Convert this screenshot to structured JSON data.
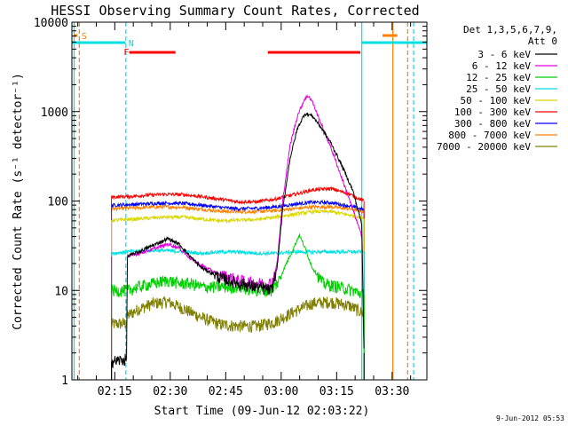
{
  "chart_data": {
    "type": "line",
    "title": "HESSI Observing Summary Count Rates, Corrected",
    "xlabel": "Start Time (09-Jun-12 02:03:22)",
    "ylabel": "Corrected Count Rate (s⁻¹ detector⁻¹)",
    "yscale": "log",
    "ylim": [
      1,
      10000
    ],
    "xlim_minutes_since_start": [
      0,
      96
    ],
    "x_ticks": [
      "02:15",
      "02:30",
      "02:45",
      "03:00",
      "03:15",
      "03:30"
    ],
    "x_tick_minutes": [
      11.6,
      26.6,
      41.6,
      56.6,
      71.6,
      86.6
    ],
    "y_ticks": [
      "1",
      "10",
      "100",
      "1000",
      "10000"
    ],
    "legend_title": [
      "Det 1,3,5,6,7,9,",
      "Att 0"
    ],
    "footer_date": "9-Jun-2012 05:53",
    "flags": {
      "S": {
        "label": "S",
        "color": "#ff8000",
        "x_start": 0.5,
        "x_end": 1.5
      },
      "N": {
        "label": "N",
        "color": "#00e0e0"
      },
      "F": {
        "label": "F",
        "color": "#ff0000"
      },
      "night_segments": [
        [
          0,
          14.5
        ],
        [
          78.5,
          96
        ]
      ],
      "flare_segments": [
        [
          15.5,
          28
        ],
        [
          53,
          78
        ]
      ],
      "orange_top_segment": [
        84,
        88
      ]
    },
    "vertical_lines": [
      {
        "x": 0.6,
        "color": "#00e0e0",
        "style": "solid"
      },
      {
        "x": 2.0,
        "color": "#ff8000",
        "style": "dashed"
      },
      {
        "x": 14.6,
        "color": "#00e0e0",
        "style": "dashed"
      },
      {
        "x": 78.4,
        "color": "#00e0e0",
        "style": "solid"
      },
      {
        "x": 86.8,
        "color": "#ff8000",
        "style": "solid"
      },
      {
        "x": 90.8,
        "color": "#ff8000",
        "style": "dashed"
      },
      {
        "x": 92.4,
        "color": "#00e0e0",
        "style": "dashed"
      }
    ],
    "data_start": 10.7,
    "data_end": 79.0,
    "series": [
      {
        "name": "3 - 6 keV",
        "color": "#000000",
        "points": [
          [
            10.7,
            1.6
          ],
          [
            14.8,
            1.7
          ],
          [
            15.0,
            24
          ],
          [
            18,
            27
          ],
          [
            22,
            32
          ],
          [
            26,
            38
          ],
          [
            29,
            33
          ],
          [
            32,
            24
          ],
          [
            35,
            18
          ],
          [
            40,
            14
          ],
          [
            45,
            12
          ],
          [
            50,
            11
          ],
          [
            54,
            10
          ],
          [
            55.5,
            18
          ],
          [
            57,
            80
          ],
          [
            59,
            300
          ],
          [
            61,
            650
          ],
          [
            63,
            950
          ],
          [
            65,
            900
          ],
          [
            67,
            700
          ],
          [
            70,
            450
          ],
          [
            73,
            250
          ],
          [
            76,
            130
          ],
          [
            78.4,
            55
          ],
          [
            79.0,
            2
          ]
        ]
      },
      {
        "name": "6 - 12 keV",
        "color": "#e000e0",
        "points": [
          [
            15.0,
            24
          ],
          [
            18,
            26
          ],
          [
            22,
            29
          ],
          [
            26,
            33
          ],
          [
            29,
            30
          ],
          [
            32,
            23
          ],
          [
            35,
            19
          ],
          [
            40,
            15
          ],
          [
            45,
            13
          ],
          [
            50,
            12
          ],
          [
            54,
            12
          ],
          [
            55.5,
            20
          ],
          [
            57,
            100
          ],
          [
            59,
            420
          ],
          [
            61,
            900
          ],
          [
            63,
            1400
          ],
          [
            64,
            1500
          ],
          [
            65,
            1300
          ],
          [
            67,
            800
          ],
          [
            70,
            400
          ],
          [
            73,
            180
          ],
          [
            76,
            80
          ],
          [
            78.4,
            40
          ]
        ]
      },
      {
        "name": "12 - 25 keV",
        "color": "#00d000",
        "points": [
          [
            10.7,
            10
          ],
          [
            15,
            10
          ],
          [
            18,
            11
          ],
          [
            22,
            12
          ],
          [
            26,
            13
          ],
          [
            29,
            12
          ],
          [
            32,
            12
          ],
          [
            35,
            11
          ],
          [
            40,
            11
          ],
          [
            45,
            11
          ],
          [
            50,
            10
          ],
          [
            54,
            10
          ],
          [
            56,
            13
          ],
          [
            58,
            20
          ],
          [
            60,
            30
          ],
          [
            61.5,
            42
          ],
          [
            63,
            30
          ],
          [
            65,
            18
          ],
          [
            68,
            12
          ],
          [
            72,
            11
          ],
          [
            76,
            10
          ],
          [
            79,
            9
          ]
        ]
      },
      {
        "name": "25 - 50 keV",
        "color": "#00e0e0",
        "points": [
          [
            10.7,
            26
          ],
          [
            15,
            27
          ],
          [
            20,
            28
          ],
          [
            25,
            28
          ],
          [
            30,
            27
          ],
          [
            35,
            26
          ],
          [
            40,
            27
          ],
          [
            45,
            27
          ],
          [
            50,
            26
          ],
          [
            55,
            26
          ],
          [
            60,
            27
          ],
          [
            65,
            27
          ],
          [
            70,
            27
          ],
          [
            75,
            27
          ],
          [
            79,
            27
          ]
        ]
      },
      {
        "name": "50 - 100 keV",
        "color": "#d8d800",
        "points": [
          [
            10.7,
            61
          ],
          [
            15,
            62
          ],
          [
            20,
            64
          ],
          [
            25,
            66
          ],
          [
            30,
            66
          ],
          [
            35,
            63
          ],
          [
            40,
            60
          ],
          [
            45,
            61
          ],
          [
            50,
            62
          ],
          [
            55,
            66
          ],
          [
            60,
            71
          ],
          [
            65,
            76
          ],
          [
            70,
            76
          ],
          [
            75,
            70
          ],
          [
            79,
            64
          ]
        ]
      },
      {
        "name": "100 - 300 keV",
        "color": "#ff0000",
        "points": [
          [
            10.7,
            111
          ],
          [
            15,
            112
          ],
          [
            20,
            116
          ],
          [
            25,
            119
          ],
          [
            30,
            118
          ],
          [
            35,
            112
          ],
          [
            40,
            105
          ],
          [
            45,
            98
          ],
          [
            50,
            98
          ],
          [
            55,
            105
          ],
          [
            60,
            118
          ],
          [
            65,
            133
          ],
          [
            70,
            138
          ],
          [
            75,
            120
          ],
          [
            79,
            100
          ]
        ]
      },
      {
        "name": "300 - 800 keV",
        "color": "#0000ff",
        "points": [
          [
            10.7,
            90
          ],
          [
            15,
            91
          ],
          [
            20,
            93
          ],
          [
            25,
            95
          ],
          [
            30,
            94
          ],
          [
            35,
            90
          ],
          [
            40,
            85
          ],
          [
            45,
            82
          ],
          [
            50,
            83
          ],
          [
            55,
            86
          ],
          [
            60,
            92
          ],
          [
            65,
            97
          ],
          [
            70,
            96
          ],
          [
            75,
            88
          ],
          [
            79,
            80
          ]
        ]
      },
      {
        "name": "800 - 7000 keV",
        "color": "#ff8000",
        "points": [
          [
            10.7,
            82
          ],
          [
            15,
            83
          ],
          [
            20,
            85
          ],
          [
            25,
            86
          ],
          [
            30,
            85
          ],
          [
            35,
            81
          ],
          [
            40,
            77
          ],
          [
            45,
            76
          ],
          [
            50,
            76
          ],
          [
            55,
            78
          ],
          [
            60,
            82
          ],
          [
            65,
            86
          ],
          [
            70,
            86
          ],
          [
            75,
            82
          ],
          [
            79,
            76
          ]
        ]
      },
      {
        "name": "7000 - 20000 keV",
        "color": "#808000",
        "points": [
          [
            10.7,
            4.2
          ],
          [
            14.8,
            4.3
          ],
          [
            15,
            5.2
          ],
          [
            18,
            6.2
          ],
          [
            22,
            7.2
          ],
          [
            26,
            7.5
          ],
          [
            30,
            6.3
          ],
          [
            35,
            5.0
          ],
          [
            40,
            4.2
          ],
          [
            45,
            4.0
          ],
          [
            50,
            4.0
          ],
          [
            55,
            4.5
          ],
          [
            60,
            5.8
          ],
          [
            65,
            7.2
          ],
          [
            70,
            7.5
          ],
          [
            75,
            6.8
          ],
          [
            79,
            5.5
          ]
        ]
      }
    ]
  }
}
